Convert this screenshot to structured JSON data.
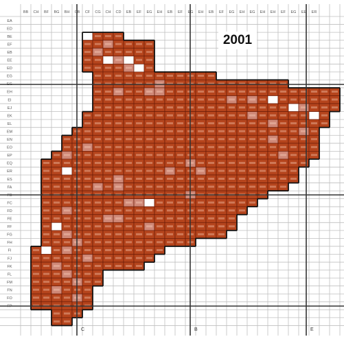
{
  "map": {
    "year": "2001",
    "column_codes": [
      "BB",
      "CH",
      "BF",
      "BG",
      "BH",
      "CB",
      "CF",
      "CG",
      "CH",
      "CD",
      "EB",
      "EF",
      "EG",
      "EH",
      "EB",
      "EF",
      "EG",
      "EH",
      "EB",
      "EF",
      "EG",
      "EH",
      "EG",
      "EH",
      "EH",
      "EF",
      "EG",
      "EE",
      "ER"
    ],
    "row_codes": [
      "EA",
      "ED",
      "BE",
      "EF",
      "EB",
      "EE",
      "ED",
      "EG",
      "EG",
      "EH",
      "EI",
      "EJ",
      "EK",
      "EL",
      "EM",
      "EN",
      "EO",
      "EP",
      "EQ",
      "ER",
      "ES",
      "FA",
      "FB",
      "FC",
      "FD",
      "FE",
      "FF",
      "FG",
      "FH",
      "FI",
      "FJ",
      "FK",
      "FL",
      "FM",
      "FN",
      "FO",
      "FP"
    ],
    "major_line_labels": [
      "C",
      "B",
      "E"
    ],
    "colors": {
      "occupied_dark": "#b5441c",
      "occupied_light": "#cf8877",
      "cell_border": "#6b1c08",
      "grid_line": "#bfbfbf",
      "major_line": "#333333",
      "outline": "#111111"
    },
    "row_spans": [
      [
        6,
        9
      ],
      [
        6,
        9
      ],
      [
        6,
        9
      ],
      [
        6,
        9
      ],
      [
        6,
        9
      ],
      [
        6,
        9
      ],
      [
        6,
        9
      ],
      [
        6,
        9
      ],
      [
        6,
        9
      ],
      [
        6,
        9
      ],
      [
        6,
        9
      ],
      [
        6,
        9
      ],
      [
        6,
        9
      ],
      [
        6,
        9
      ],
      [
        6,
        9
      ],
      [
        6,
        9
      ],
      [
        6,
        9
      ],
      [
        6,
        9
      ],
      [
        6,
        9
      ],
      [
        6,
        9
      ]
    ]
  }
}
